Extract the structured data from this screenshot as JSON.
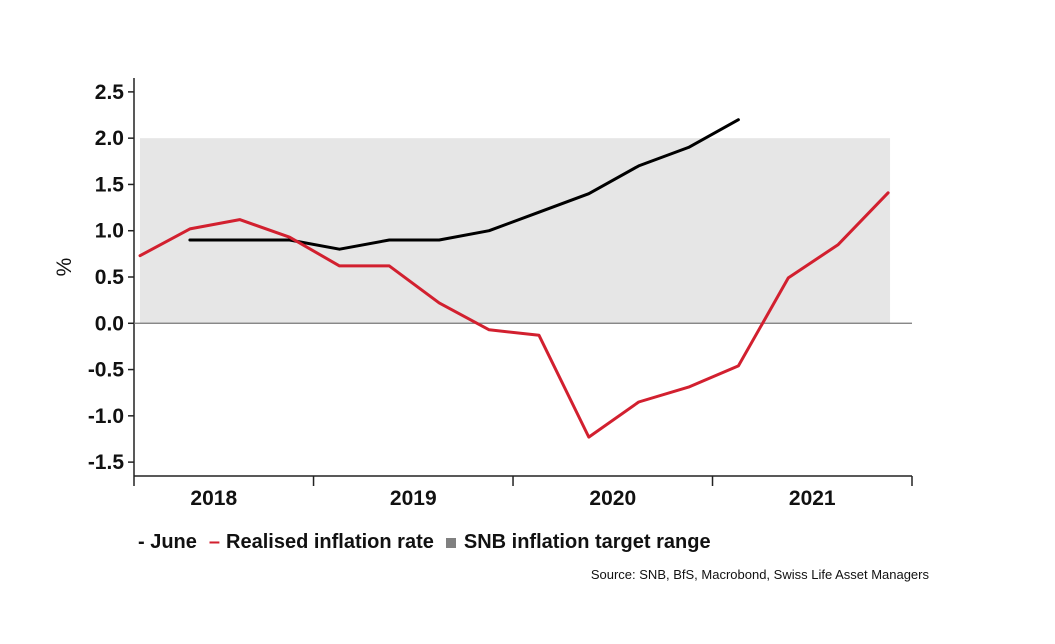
{
  "chart_data": {
    "type": "line",
    "ylabel": "%",
    "ylim": [
      -1.65,
      2.65
    ],
    "yticks": [
      "2.5",
      "2.0",
      "1.5",
      "1.0",
      "0.5",
      "0.0",
      "-0.5",
      "-1.0",
      "-1.5"
    ],
    "ytick_values": [
      2.5,
      2.0,
      1.5,
      1.0,
      0.5,
      0.0,
      -0.5,
      -1.0,
      -1.5
    ],
    "xlim": [
      2017.6,
      2021.5
    ],
    "x_tick_boundaries": [
      2018.5,
      2019.5,
      2020.5
    ],
    "year_labels": [
      {
        "label": "2018",
        "x": 2018.0
      },
      {
        "label": "2019",
        "x": 2019.0
      },
      {
        "label": "2020",
        "x": 2020.0
      },
      {
        "label": "2021",
        "x": 2021.0
      }
    ],
    "target_band": {
      "name": "SNB inflation target range",
      "ymin": 0.0,
      "ymax": 2.0,
      "xmin": 2017.63,
      "xmax": 2021.39,
      "color": "#e6e6e6"
    },
    "series": [
      {
        "name": "June",
        "color": "#000000",
        "points": [
          [
            2017.88,
            0.9
          ],
          [
            2018.13,
            0.9
          ],
          [
            2018.38,
            0.9
          ],
          [
            2018.63,
            0.8
          ],
          [
            2018.88,
            0.9
          ],
          [
            2019.13,
            0.9
          ],
          [
            2019.38,
            1.0
          ],
          [
            2019.63,
            1.2
          ],
          [
            2019.88,
            1.4
          ],
          [
            2020.13,
            1.7
          ],
          [
            2020.38,
            1.9
          ],
          [
            2020.63,
            2.2
          ]
        ]
      },
      {
        "name": "Realised inflation rate",
        "color": "#d2202f",
        "points": [
          [
            2017.63,
            0.73
          ],
          [
            2017.88,
            1.02
          ],
          [
            2018.13,
            1.12
          ],
          [
            2018.38,
            0.93
          ],
          [
            2018.63,
            0.62
          ],
          [
            2018.88,
            0.62
          ],
          [
            2019.13,
            0.22
          ],
          [
            2019.38,
            -0.07
          ],
          [
            2019.63,
            -0.13
          ],
          [
            2019.88,
            -1.23
          ],
          [
            2020.13,
            -0.85
          ],
          [
            2020.38,
            -0.69
          ],
          [
            2020.63,
            -0.46
          ],
          [
            2020.88,
            0.49
          ],
          [
            2021.13,
            0.85
          ],
          [
            2021.38,
            1.41
          ]
        ]
      }
    ],
    "legend": {
      "june_label": "- June",
      "realised_marker": "–",
      "realised_label": "Realised inflation rate",
      "band_label": "SNB inflation target range",
      "band_marker_color": "#808080"
    },
    "source": "Source: SNB, BfS, Macrobond, Swiss Life Asset Managers"
  }
}
